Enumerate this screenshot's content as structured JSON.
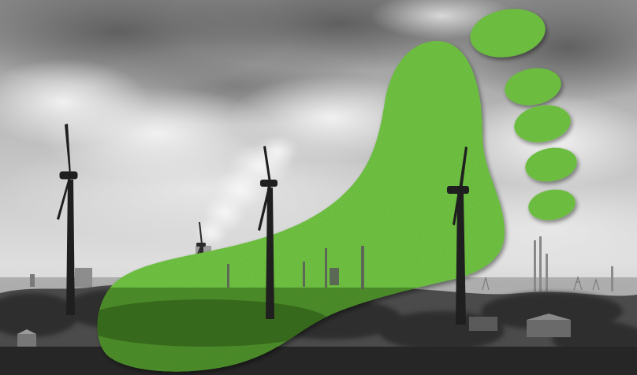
{
  "image": {
    "subject": "green-footprint-over-industrial-landscape",
    "colors": {
      "footprint_green": "#5fb52e",
      "footprint_green_dark": "#3f8a1a",
      "sky_light": "#e9e9e9",
      "sky_dark": "#6e6e6e",
      "ground_dark": "#2b2b2b"
    }
  }
}
